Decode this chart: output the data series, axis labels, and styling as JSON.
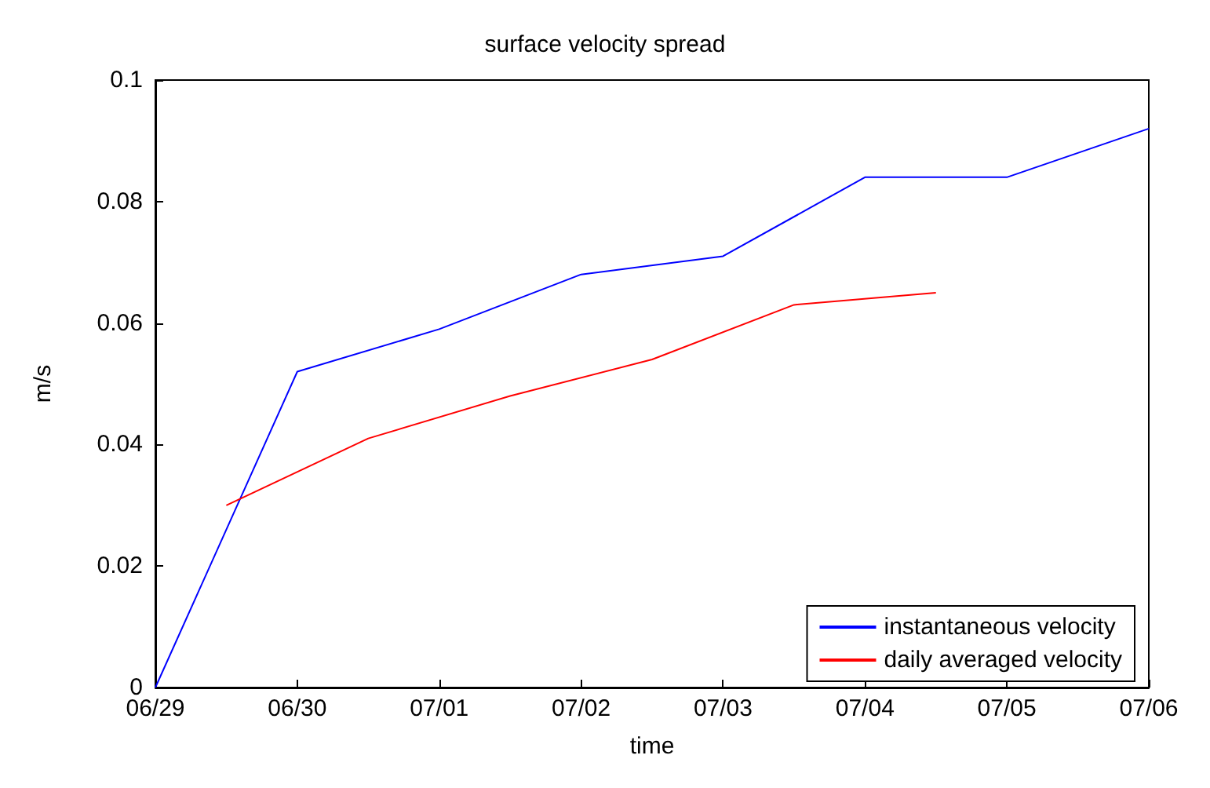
{
  "chart_data": {
    "type": "line",
    "title": "surface velocity spread",
    "xlabel": "time",
    "ylabel": "m/s",
    "xlim": [
      "--06-29",
      "--07-06"
    ],
    "xticks": [
      {
        "value": "--06-29",
        "label": "06/29"
      },
      {
        "value": "--06-30",
        "label": "06/30"
      },
      {
        "value": "--07-01",
        "label": "07/01"
      },
      {
        "value": "--07-02",
        "label": "07/02"
      },
      {
        "value": "--07-03",
        "label": "07/03"
      },
      {
        "value": "--07-04",
        "label": "07/04"
      },
      {
        "value": "--07-05",
        "label": "07/05"
      },
      {
        "value": "--07-06",
        "label": "07/06"
      }
    ],
    "ylim": [
      0,
      0.1
    ],
    "yticks": [
      0,
      0.02,
      0.04,
      0.06,
      0.08,
      0.1
    ],
    "grid": false,
    "legend": "bottom right",
    "marker": "none",
    "line_style": "solid",
    "series": [
      {
        "name": "instantaneous velocity",
        "color": "#0000ff",
        "x": [
          "--06-29",
          "--06-30",
          "--07-01",
          "--07-02",
          "--07-03",
          "--07-04",
          "--07-05",
          "--07-06"
        ],
        "values": [
          0,
          0.052,
          0.059,
          0.068,
          0.071,
          0.084,
          0.084,
          0.092
        ]
      },
      {
        "name": "daily averaged velocity",
        "color": "#ff0000",
        "x": [
          "--06-29T12:00",
          "--06-30T12:00",
          "--07-01T12:00",
          "--07-02T12:00",
          "--07-03T12:00",
          "--07-04T12:00"
        ],
        "values": [
          0.03,
          0.041,
          0.048,
          0.054,
          0.063,
          0.065
        ]
      }
    ]
  }
}
